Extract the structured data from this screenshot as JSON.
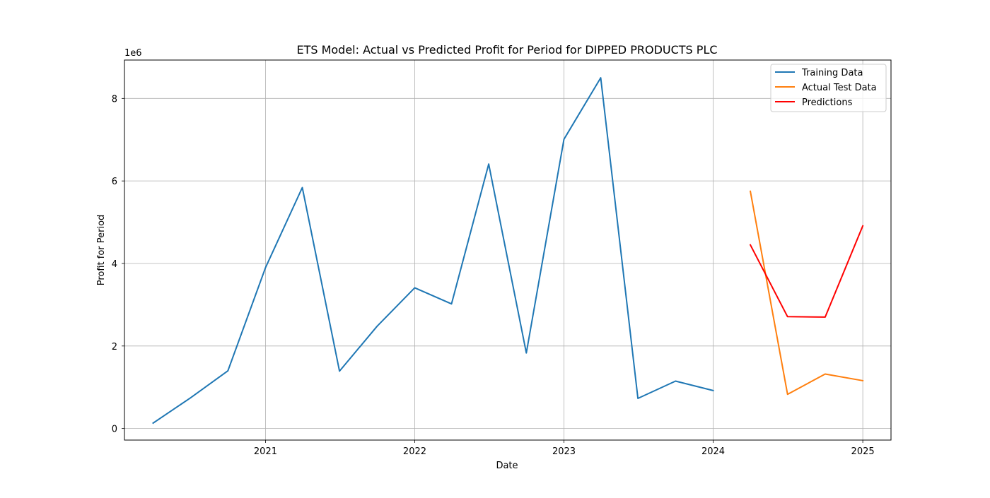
{
  "chart_data": {
    "type": "line",
    "title": "ETS Model: Actual vs Predicted Profit for Period for DIPPED PRODUCTS PLC",
    "xlabel": "Date",
    "ylabel": "Profit for Period",
    "y_offset_label": "1e6",
    "xlim": [
      "2020-01-22",
      "2025-03-11"
    ],
    "ylim": [
      -280000,
      8930000
    ],
    "x_ticks": [
      {
        "label": "2021",
        "date": "2021-01-01"
      },
      {
        "label": "2022",
        "date": "2022-01-01"
      },
      {
        "label": "2023",
        "date": "2023-01-01"
      },
      {
        "label": "2024",
        "date": "2024-01-01"
      },
      {
        "label": "2025",
        "date": "2025-01-01"
      }
    ],
    "y_ticks": [
      {
        "label": "0",
        "value": 0
      },
      {
        "label": "2",
        "value": 2000000
      },
      {
        "label": "4",
        "value": 4000000
      },
      {
        "label": "6",
        "value": 6000000
      },
      {
        "label": "8",
        "value": 8000000
      }
    ],
    "grid": true,
    "legend_position": "top-right",
    "series": [
      {
        "name": "Training Data",
        "color": "#1f77b4",
        "x": [
          "2020-04-01",
          "2020-07-01",
          "2020-10-01",
          "2021-01-01",
          "2021-04-01",
          "2021-07-01",
          "2021-10-01",
          "2022-01-01",
          "2022-04-01",
          "2022-07-01",
          "2022-10-01",
          "2023-01-01",
          "2023-04-01",
          "2023-07-01",
          "2023-10-01",
          "2024-01-01"
        ],
        "y": [
          130000,
          740000,
          1400000,
          3900000,
          5840000,
          1390000,
          2480000,
          3410000,
          3020000,
          6410000,
          1830000,
          7010000,
          8500000,
          730000,
          1150000,
          920000
        ]
      },
      {
        "name": "Actual Test Data",
        "color": "#ff7f0e",
        "x": [
          "2024-04-01",
          "2024-07-01",
          "2024-10-01",
          "2025-01-01"
        ],
        "y": [
          5750000,
          830000,
          1320000,
          1160000
        ]
      },
      {
        "name": "Predictions",
        "color": "#ff0000",
        "x": [
          "2024-04-01",
          "2024-07-01",
          "2024-10-01",
          "2025-01-01"
        ],
        "y": [
          4450000,
          2710000,
          2700000,
          4910000
        ]
      }
    ]
  }
}
